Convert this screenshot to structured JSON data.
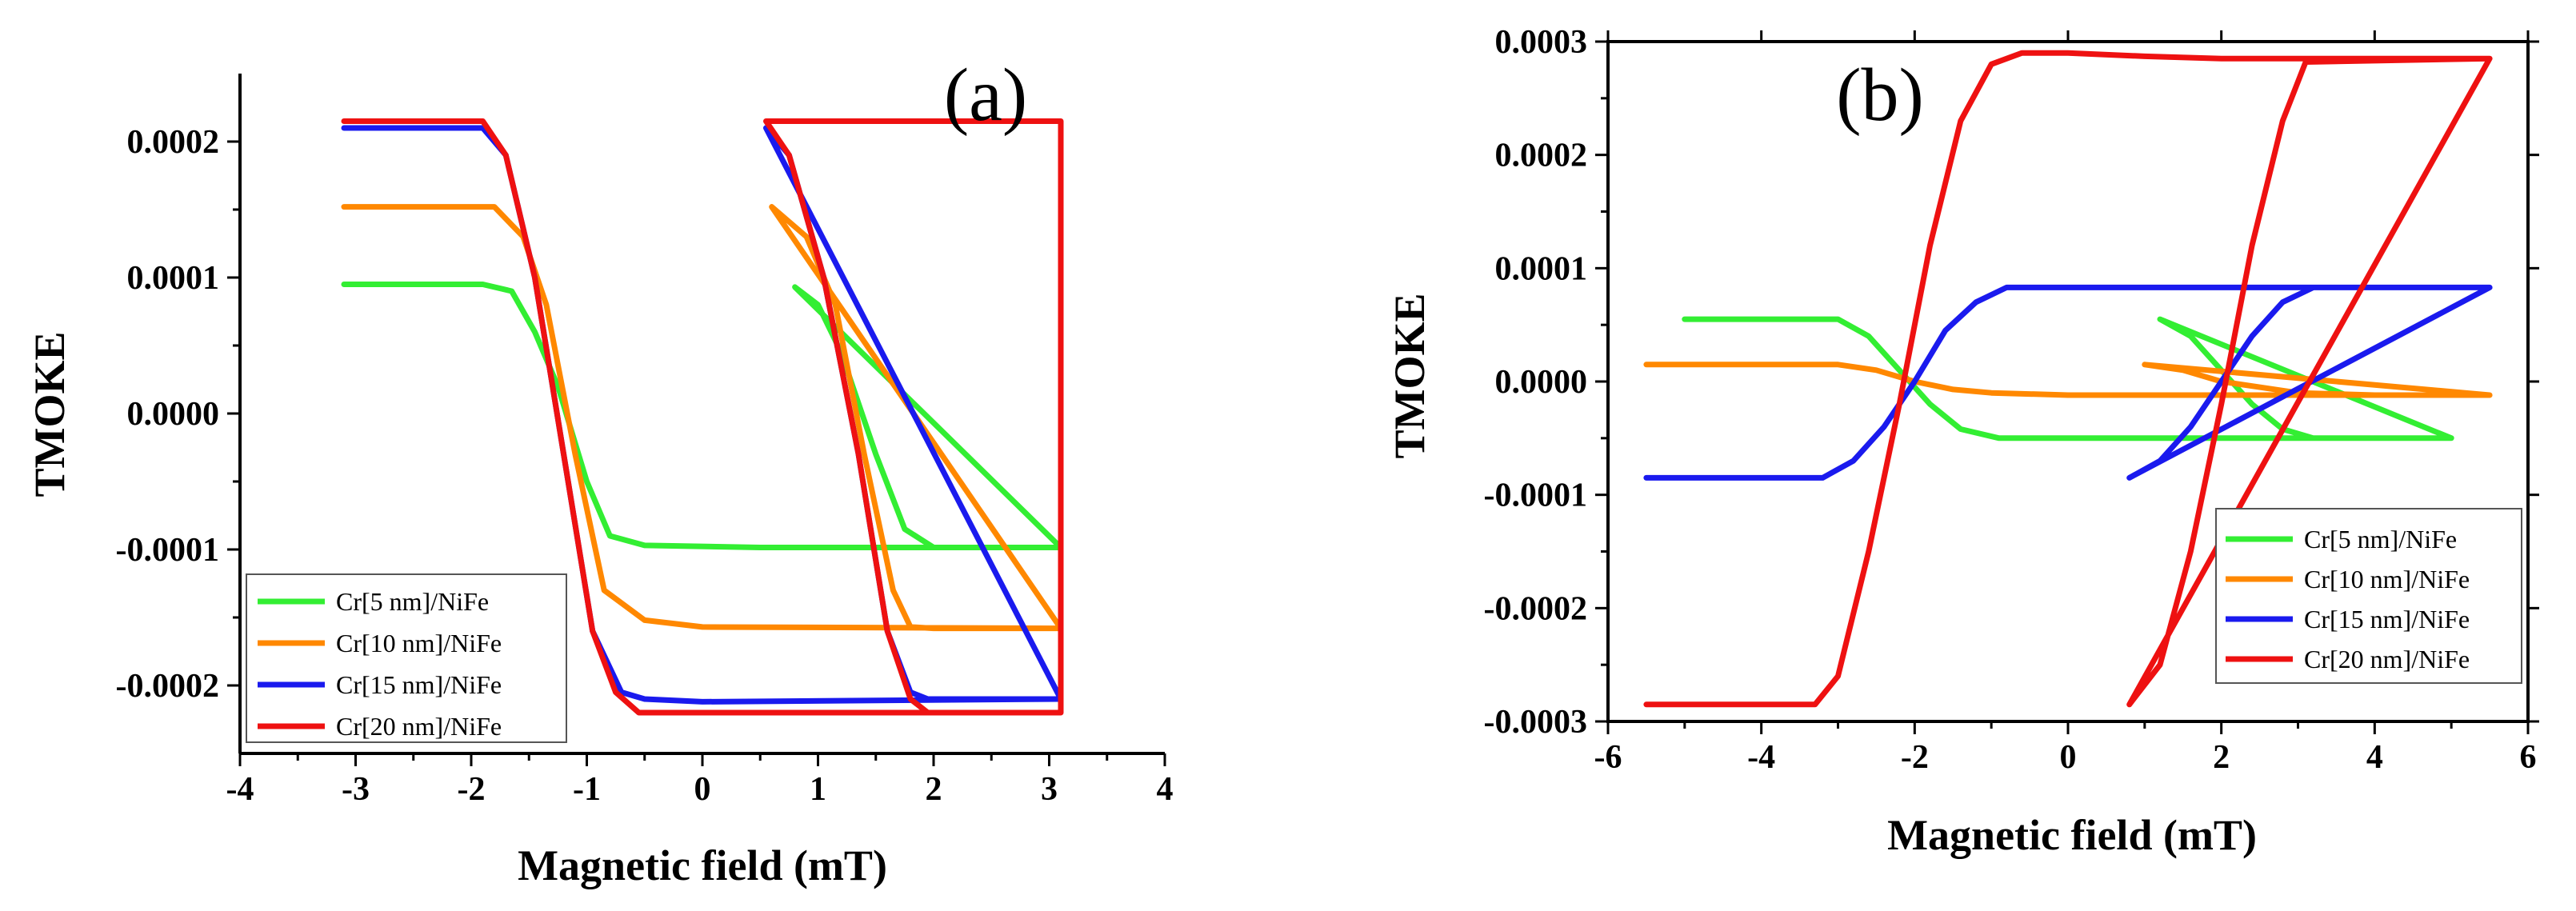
{
  "chart_data": [
    {
      "type": "line",
      "panel_label": "(a)",
      "xlabel": "Magnetic field (mT)",
      "ylabel": "TMOKE",
      "xlim": [
        -4,
        4
      ],
      "ylim": [
        -0.00025,
        0.00025
      ],
      "xticks": [
        -4,
        -3,
        -2,
        -1,
        0,
        1,
        2,
        3,
        4
      ],
      "xtick_labels": [
        "-4",
        "-3",
        "-2",
        "-1",
        "0",
        "1",
        "2",
        "3",
        "4"
      ],
      "yticks": [
        0.0002,
        0.0001,
        0.0,
        -0.0001,
        -0.0002
      ],
      "ytick_labels": [
        "0.0002",
        "0.0001",
        "0.0000",
        "-0.0001",
        "-0.0002"
      ],
      "legend_position": "bottom-left",
      "series": [
        {
          "name": "Cr[5 nm]/NiFe",
          "color": "#33ee33",
          "x": [
            -3.1,
            -1.9,
            -1.65,
            -1.45,
            -1.25,
            -1.0,
            -0.8,
            -0.5,
            0.5,
            3.1,
            3.1,
            0.8,
            1.0,
            1.2,
            1.5,
            1.75,
            2.0,
            3.1
          ],
          "y": [
            9.5e-05,
            9.5e-05,
            9e-05,
            6e-05,
            2e-05,
            -5e-05,
            -9e-05,
            -9.7e-05,
            -9.85e-05,
            -9.85e-05,
            -9.85e-05,
            9.3e-05,
            8e-05,
            4.5e-05,
            -3e-05,
            -8.5e-05,
            -9.85e-05,
            -9.85e-05
          ]
        },
        {
          "name": "Cr[10 nm]/NiFe",
          "color": "#ff8800",
          "x": [
            -3.1,
            -1.8,
            -1.55,
            -1.35,
            -1.1,
            -0.85,
            -0.5,
            0.0,
            3.1,
            3.1,
            0.6,
            0.9,
            1.15,
            1.4,
            1.65,
            1.8,
            2.0,
            3.1
          ],
          "y": [
            0.000152,
            0.000152,
            0.00013,
            8e-05,
            -3e-05,
            -0.00013,
            -0.000152,
            -0.000157,
            -0.000158,
            -0.000158,
            0.000152,
            0.00013,
            8e-05,
            -3e-05,
            -0.00013,
            -0.000157,
            -0.000158,
            -0.000158
          ]
        },
        {
          "name": "Cr[15 nm]/NiFe",
          "color": "#1a1aee",
          "x": [
            -3.1,
            -1.9,
            -1.7,
            -1.45,
            -1.2,
            -0.95,
            -0.7,
            -0.5,
            0.0,
            3.1,
            3.1,
            0.55,
            0.75,
            1.05,
            1.35,
            1.6,
            1.8,
            1.95,
            3.1
          ],
          "y": [
            0.00021,
            0.00021,
            0.00019,
            0.0001,
            -3e-05,
            -0.00016,
            -0.000205,
            -0.00021,
            -0.000212,
            -0.00021,
            -0.00021,
            0.00021,
            0.00019,
            0.0001,
            -3e-05,
            -0.00016,
            -0.000205,
            -0.00021,
            -0.00021
          ]
        },
        {
          "name": "Cr[20 nm]/NiFe",
          "color": "#ee1111",
          "x": [
            -3.1,
            -1.9,
            -1.7,
            -1.45,
            -1.2,
            -0.95,
            -0.75,
            -0.55,
            0.0,
            3.1,
            3.1,
            0.55,
            0.75,
            1.05,
            1.35,
            1.6,
            1.8,
            1.95,
            3.1
          ],
          "y": [
            0.000215,
            0.000215,
            0.00019,
            0.0001,
            -3e-05,
            -0.00016,
            -0.000205,
            -0.00022,
            -0.00022,
            -0.00022,
            0.000215,
            0.000215,
            0.00019,
            0.0001,
            -3e-05,
            -0.00016,
            -0.00021,
            -0.00022,
            -0.00022
          ]
        }
      ]
    },
    {
      "type": "line",
      "panel_label": "(b)",
      "xlabel": "Magnetic field (mT)",
      "ylabel": "TMOKE",
      "xlim": [
        -6,
        6
      ],
      "ylim": [
        -0.0003,
        0.0003
      ],
      "xticks": [
        -6,
        -4,
        -2,
        0,
        2,
        4,
        6
      ],
      "xtick_labels": [
        "-6",
        "-4",
        "-2",
        "0",
        "2",
        "4",
        "6"
      ],
      "yticks": [
        0.0003,
        0.0002,
        0.0001,
        0.0,
        -0.0001,
        -0.0002,
        -0.0003
      ],
      "ytick_labels": [
        "0.0003",
        "0.0002",
        "0.0001",
        "0.0000",
        "-0.0001",
        "-0.0002",
        "-0.0003"
      ],
      "legend_position": "bottom-right",
      "series": [
        {
          "name": "Cr[5 nm]/NiFe",
          "color": "#33ee33",
          "x": [
            -5.0,
            -3.0,
            -2.6,
            -2.2,
            -1.8,
            -1.4,
            -0.9,
            0.0,
            5.0,
            5.0,
            1.2,
            1.6,
            2.0,
            2.4,
            2.8,
            3.2,
            5.0
          ],
          "y": [
            5.5e-05,
            5.5e-05,
            4e-05,
            1e-05,
            -2e-05,
            -4.2e-05,
            -5e-05,
            -5e-05,
            -5e-05,
            -5e-05,
            5.5e-05,
            4e-05,
            1e-05,
            -2e-05,
            -4.2e-05,
            -5e-05,
            -5e-05
          ]
        },
        {
          "name": "Cr[10 nm]/NiFe",
          "color": "#ff8800",
          "x": [
            -5.5,
            -3.0,
            -2.5,
            -2.0,
            -1.5,
            -1.0,
            0.0,
            5.5,
            5.5,
            1.0,
            1.5,
            2.0,
            2.5,
            3.0,
            4.0,
            5.5
          ],
          "y": [
            1.5e-05,
            1.5e-05,
            1e-05,
            0.0,
            -7e-06,
            -1e-05,
            -1.2e-05,
            -1.2e-05,
            -1.2e-05,
            1.5e-05,
            1e-05,
            0.0,
            -5e-06,
            -1e-05,
            -1.2e-05,
            -1.2e-05
          ]
        },
        {
          "name": "Cr[15 nm]/NiFe",
          "color": "#1a1aee",
          "x": [
            -5.5,
            -3.2,
            -2.8,
            -2.4,
            -2.0,
            -1.6,
            -1.2,
            -0.8,
            0.0,
            5.5,
            5.5,
            0.8,
            1.2,
            1.6,
            2.0,
            2.4,
            2.8,
            3.2,
            5.5
          ],
          "y": [
            -8.5e-05,
            -8.5e-05,
            -7e-05,
            -4e-05,
            0.0,
            4.5e-05,
            7e-05,
            8.3e-05,
            8.3e-05,
            8.3e-05,
            8.3e-05,
            -8.5e-05,
            -7e-05,
            -4e-05,
            0.0,
            4e-05,
            7e-05,
            8.3e-05,
            8.3e-05
          ]
        },
        {
          "name": "Cr[20 nm]/NiFe",
          "color": "#ee1111",
          "x": [
            -5.5,
            -3.3,
            -3.0,
            -2.6,
            -2.2,
            -1.8,
            -1.4,
            -1.0,
            -0.6,
            0.0,
            1.0,
            2.0,
            5.5,
            5.5,
            0.8,
            1.2,
            1.6,
            2.0,
            2.4,
            2.8,
            3.1,
            5.5
          ],
          "y": [
            -0.000285,
            -0.000285,
            -0.00026,
            -0.00015,
            -2e-05,
            0.00012,
            0.00023,
            0.00028,
            0.00029,
            0.00029,
            0.000287,
            0.000285,
            0.000285,
            0.000285,
            -0.000285,
            -0.00025,
            -0.00015,
            -2e-05,
            0.00012,
            0.00023,
            0.000282,
            0.000285
          ]
        }
      ]
    }
  ]
}
